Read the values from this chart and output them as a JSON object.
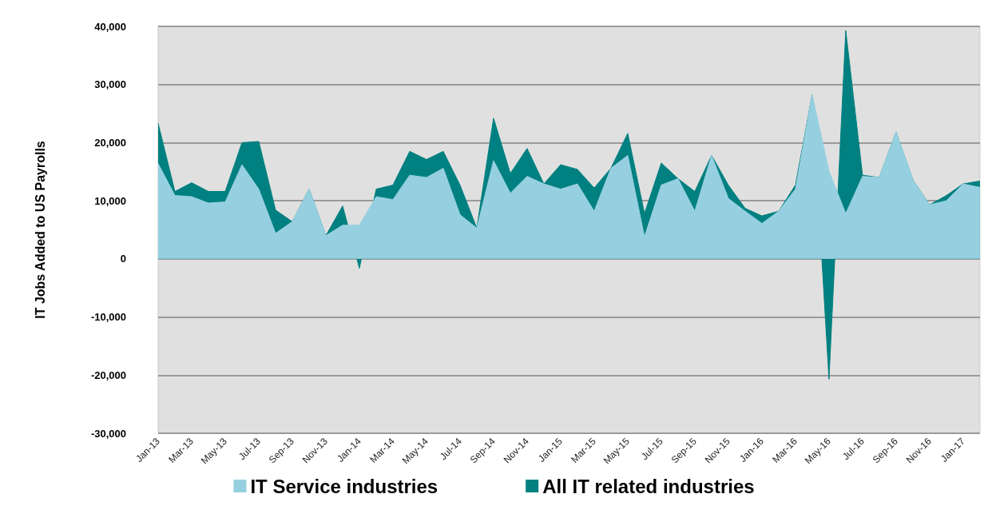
{
  "chart_data": {
    "type": "area",
    "ylabel": "IT Jobs Added to US Payrolls",
    "categories": [
      "Jan-13",
      null,
      "Mar-13",
      null,
      "May-13",
      null,
      "Jul-13",
      null,
      "Sep-13",
      null,
      "Nov-13",
      null,
      "Jan-14",
      null,
      "Mar-14",
      null,
      "May-14",
      null,
      "Jul-14",
      null,
      "Sep-14",
      null,
      "Nov-14",
      null,
      "Jan-15",
      null,
      "Mar-15",
      null,
      "May-15",
      null,
      "Jul-15",
      null,
      "Sep-15",
      null,
      "Nov-15",
      null,
      "Jan-16",
      null,
      "Mar-16",
      null,
      "May-16",
      null,
      "Jul-16",
      null,
      "Sep-16",
      null,
      "Nov-16",
      null,
      "Jan-17",
      null
    ],
    "series": [
      {
        "name": "IT Service industries",
        "color": "#96d0e0",
        "values": [
          16400,
          10900,
          10700,
          9600,
          9800,
          16200,
          12000,
          4400,
          6400,
          12000,
          4000,
          5800,
          5800,
          10700,
          10200,
          14400,
          14000,
          15600,
          7600,
          5300,
          16900,
          11300,
          14200,
          12900,
          12000,
          12900,
          8200,
          15600,
          17800,
          3800,
          12700,
          13800,
          8200,
          17800,
          10400,
          8200,
          6100,
          8200,
          12000,
          28200,
          15100,
          7800,
          14200,
          14000,
          21800,
          13600,
          9300,
          10000,
          12900,
          12300
        ]
      },
      {
        "name": "All IT related industries",
        "color": "#008080",
        "values": [
          23300,
          11600,
          13100,
          11600,
          11600,
          20000,
          20200,
          8400,
          6400,
          12000,
          4000,
          9100,
          -1600,
          12000,
          12700,
          18500,
          17100,
          18500,
          12700,
          5300,
          24200,
          14700,
          19000,
          12900,
          16200,
          15400,
          12200,
          15600,
          21600,
          7800,
          16500,
          13800,
          11600,
          17800,
          12700,
          8700,
          7400,
          8200,
          12700,
          28200,
          -20700,
          39300,
          14400,
          14000,
          21800,
          13600,
          9300,
          10900,
          12900,
          13400
        ]
      }
    ],
    "ylim": [
      -30000,
      40000
    ],
    "yticks": [
      {
        "value": -30000,
        "label": "-30,000"
      },
      {
        "value": -20000,
        "label": "-20,000"
      },
      {
        "value": -10000,
        "label": "-10,000"
      },
      0,
      {
        "value": 10000,
        "label": "10,000"
      },
      {
        "value": 20000,
        "label": "20,000"
      },
      {
        "value": 30000,
        "label": "30,000"
      },
      {
        "value": 40000,
        "label": "40,000"
      }
    ],
    "grid": "y",
    "legend": "bottom"
  }
}
